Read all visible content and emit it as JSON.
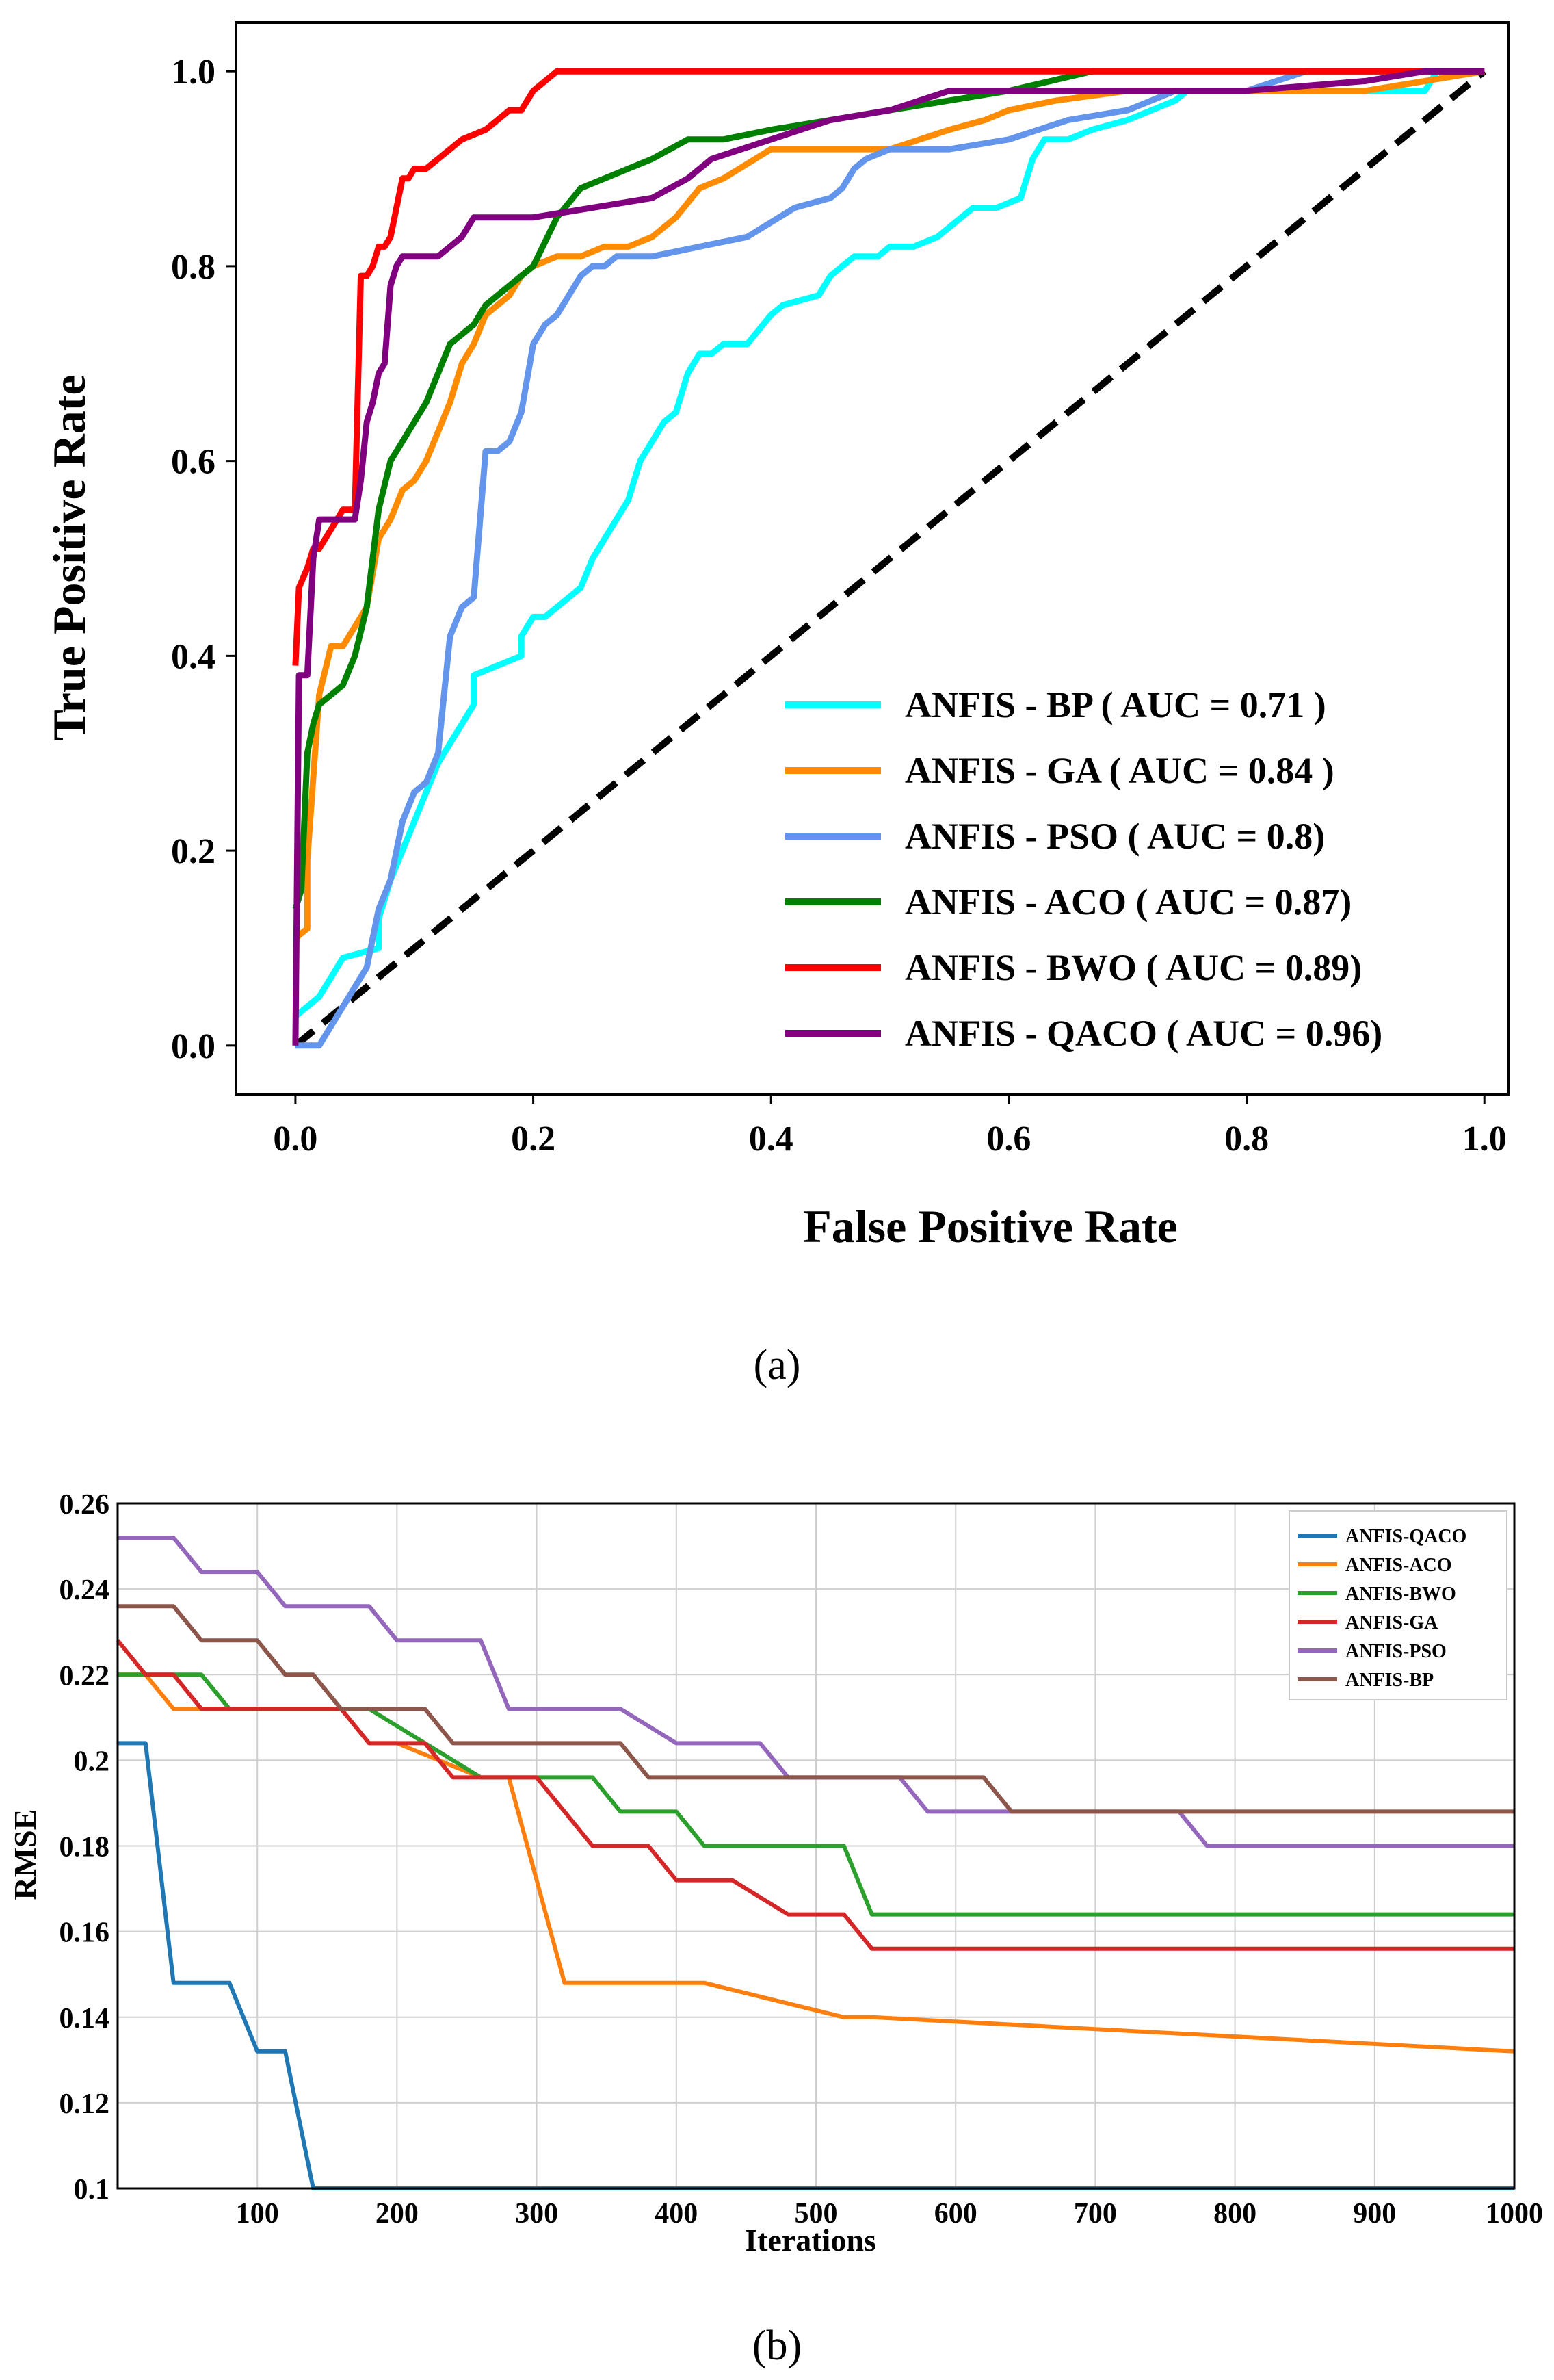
{
  "panels": {
    "a": {
      "caption": "(a)"
    },
    "b": {
      "caption": "(b)"
    }
  },
  "chart_data": [
    {
      "type": "line",
      "title": "",
      "xlabel": "False Positive Rate",
      "ylabel": "True Positive Rate",
      "xlim": [
        -0.05,
        1.02
      ],
      "ylim": [
        -0.05,
        1.05
      ],
      "xticks": [
        "0.0",
        "0.2",
        "0.4",
        "0.6",
        "0.8",
        "1.0"
      ],
      "yticks": [
        "0.0",
        "0.2",
        "0.4",
        "0.6",
        "0.8",
        "1.0"
      ],
      "xtick_values": [
        0,
        0.2,
        0.4,
        0.6,
        0.8,
        1.0
      ],
      "ytick_values": [
        0,
        0.2,
        0.4,
        0.6,
        0.8,
        1.0
      ],
      "grid": false,
      "legend_position": "bottom-right",
      "diagonal": {
        "x": [
          0,
          1
        ],
        "y": [
          0,
          1
        ],
        "color": "#000000",
        "style": "dashed"
      },
      "series": [
        {
          "name": "ANFIS - BP ( AUC = 0.71 )",
          "color": "#00FFFF",
          "x": [
            0,
            0.01,
            0.02,
            0.03,
            0.04,
            0.07,
            0.07,
            0.08,
            0.09,
            0.1,
            0.11,
            0.12,
            0.13,
            0.14,
            0.15,
            0.15,
            0.19,
            0.19,
            0.2,
            0.21,
            0.24,
            0.25,
            0.26,
            0.28,
            0.29,
            0.3,
            0.31,
            0.32,
            0.33,
            0.34,
            0.35,
            0.36,
            0.38,
            0.4,
            0.41,
            0.44,
            0.45,
            0.46,
            0.47,
            0.49,
            0.5,
            0.52,
            0.54,
            0.55,
            0.57,
            0.59,
            0.61,
            0.62,
            0.63,
            0.65,
            0.67,
            0.7,
            0.72,
            0.74,
            0.75,
            0.9,
            0.93,
            0.95,
            0.96,
            1.0
          ],
          "y": [
            0.03,
            0.04,
            0.05,
            0.07,
            0.09,
            0.1,
            0.13,
            0.17,
            0.2,
            0.23,
            0.26,
            0.29,
            0.31,
            0.33,
            0.35,
            0.38,
            0.4,
            0.42,
            0.44,
            0.44,
            0.47,
            0.5,
            0.52,
            0.56,
            0.6,
            0.62,
            0.64,
            0.65,
            0.69,
            0.71,
            0.71,
            0.72,
            0.72,
            0.75,
            0.76,
            0.77,
            0.79,
            0.8,
            0.81,
            0.81,
            0.82,
            0.82,
            0.83,
            0.84,
            0.86,
            0.86,
            0.87,
            0.91,
            0.93,
            0.93,
            0.94,
            0.95,
            0.96,
            0.97,
            0.98,
            0.98,
            0.98,
            0.98,
            1.0,
            1.0
          ]
        },
        {
          "name": "ANFIS - GA ( AUC = 0.84 )",
          "color": "#FF8C00",
          "x": [
            0,
            0.01,
            0.01,
            0.02,
            0.03,
            0.04,
            0.05,
            0.06,
            0.07,
            0.08,
            0.09,
            0.1,
            0.11,
            0.12,
            0.13,
            0.14,
            0.15,
            0.16,
            0.17,
            0.18,
            0.19,
            0.2,
            0.22,
            0.24,
            0.26,
            0.28,
            0.3,
            0.32,
            0.34,
            0.36,
            0.4,
            0.44,
            0.5,
            0.55,
            0.58,
            0.6,
            0.64,
            0.7,
            0.8,
            0.9,
            1.0
          ],
          "y": [
            0.11,
            0.12,
            0.19,
            0.36,
            0.41,
            0.41,
            0.43,
            0.45,
            0.52,
            0.54,
            0.57,
            0.58,
            0.6,
            0.63,
            0.66,
            0.7,
            0.72,
            0.75,
            0.76,
            0.77,
            0.79,
            0.8,
            0.81,
            0.81,
            0.82,
            0.82,
            0.83,
            0.85,
            0.88,
            0.89,
            0.92,
            0.92,
            0.92,
            0.94,
            0.95,
            0.96,
            0.97,
            0.98,
            0.98,
            0.98,
            1.0
          ]
        },
        {
          "name": "ANFIS - PSO ( AUC = 0.8)",
          "color": "#6495ED",
          "x": [
            0,
            0.02,
            0.04,
            0.05,
            0.06,
            0.07,
            0.08,
            0.09,
            0.1,
            0.11,
            0.12,
            0.13,
            0.14,
            0.15,
            0.16,
            0.17,
            0.18,
            0.19,
            0.2,
            0.21,
            0.22,
            0.23,
            0.24,
            0.25,
            0.26,
            0.27,
            0.28,
            0.3,
            0.34,
            0.38,
            0.42,
            0.45,
            0.46,
            0.47,
            0.48,
            0.5,
            0.55,
            0.6,
            0.65,
            0.7,
            0.74,
            0.8,
            0.85,
            0.9,
            1.0
          ],
          "y": [
            0,
            0,
            0.04,
            0.06,
            0.08,
            0.14,
            0.17,
            0.23,
            0.26,
            0.27,
            0.3,
            0.42,
            0.45,
            0.46,
            0.61,
            0.61,
            0.62,
            0.65,
            0.72,
            0.74,
            0.75,
            0.77,
            0.79,
            0.8,
            0.8,
            0.81,
            0.81,
            0.81,
            0.82,
            0.83,
            0.86,
            0.87,
            0.88,
            0.9,
            0.91,
            0.92,
            0.92,
            0.93,
            0.95,
            0.96,
            0.98,
            0.98,
            1.0,
            1.0,
            1.0
          ]
        },
        {
          "name": "ANFIS - ACO ( AUC = 0.87)",
          "color": "#008000",
          "x": [
            0,
            0.005,
            0.01,
            0.015,
            0.02,
            0.03,
            0.04,
            0.05,
            0.06,
            0.07,
            0.08,
            0.09,
            0.1,
            0.11,
            0.12,
            0.13,
            0.14,
            0.15,
            0.16,
            0.18,
            0.2,
            0.22,
            0.24,
            0.26,
            0.28,
            0.3,
            0.33,
            0.36,
            0.4,
            0.45,
            0.5,
            0.55,
            0.6,
            0.67,
            0.75,
            0.85,
            1.0
          ],
          "y": [
            0.14,
            0.16,
            0.3,
            0.33,
            0.35,
            0.36,
            0.37,
            0.4,
            0.45,
            0.55,
            0.6,
            0.62,
            0.64,
            0.66,
            0.69,
            0.72,
            0.73,
            0.74,
            0.76,
            0.78,
            0.8,
            0.85,
            0.88,
            0.89,
            0.9,
            0.91,
            0.93,
            0.93,
            0.94,
            0.95,
            0.96,
            0.97,
            0.98,
            1.0,
            1.0,
            1.0,
            1.0
          ]
        },
        {
          "name": "ANFIS - BWO ( AUC = 0.89)",
          "color": "#FF0000",
          "x": [
            0,
            0.003,
            0.01,
            0.015,
            0.02,
            0.03,
            0.04,
            0.05,
            0.055,
            0.06,
            0.065,
            0.07,
            0.075,
            0.08,
            0.085,
            0.09,
            0.095,
            0.1,
            0.11,
            0.12,
            0.13,
            0.14,
            0.16,
            0.18,
            0.19,
            0.2,
            0.21,
            0.22,
            0.26,
            0.4,
            0.6,
            0.8,
            1.0
          ],
          "y": [
            0.39,
            0.47,
            0.49,
            0.51,
            0.51,
            0.53,
            0.55,
            0.55,
            0.79,
            0.79,
            0.8,
            0.82,
            0.82,
            0.83,
            0.86,
            0.89,
            0.89,
            0.9,
            0.9,
            0.91,
            0.92,
            0.93,
            0.94,
            0.96,
            0.96,
            0.98,
            0.99,
            1.0,
            1.0,
            1.0,
            1.0,
            1.0,
            1.0
          ]
        },
        {
          "name": "ANFIS - QACO ( AUC = 0.96)",
          "color": "#800080",
          "x": [
            0,
            0.003,
            0.01,
            0.015,
            0.02,
            0.04,
            0.05,
            0.055,
            0.06,
            0.065,
            0.07,
            0.075,
            0.08,
            0.085,
            0.09,
            0.1,
            0.12,
            0.14,
            0.15,
            0.2,
            0.25,
            0.3,
            0.33,
            0.35,
            0.4,
            0.45,
            0.5,
            0.55,
            0.6,
            0.7,
            0.8,
            0.9,
            0.95,
            1.0
          ],
          "y": [
            0,
            0.38,
            0.38,
            0.5,
            0.54,
            0.54,
            0.54,
            0.58,
            0.64,
            0.66,
            0.69,
            0.7,
            0.78,
            0.8,
            0.81,
            0.81,
            0.81,
            0.83,
            0.85,
            0.85,
            0.86,
            0.87,
            0.89,
            0.91,
            0.93,
            0.95,
            0.96,
            0.98,
            0.98,
            0.98,
            0.98,
            0.99,
            1.0,
            1.0
          ]
        }
      ]
    },
    {
      "type": "line",
      "title": "",
      "xlabel": "Iterations",
      "ylabel": "RMSE",
      "xlim": [
        0,
        1000
      ],
      "ylim": [
        0.1,
        0.26
      ],
      "xticks": [
        "100",
        "200",
        "300",
        "400",
        "500",
        "600",
        "700",
        "800",
        "900",
        "1000"
      ],
      "yticks": [
        "0.1",
        "0.12",
        "0.14",
        "0.16",
        "0.18",
        "0.2",
        "0.22",
        "0.24",
        "0.26"
      ],
      "xtick_values": [
        100,
        200,
        300,
        400,
        500,
        600,
        700,
        800,
        900,
        1000
      ],
      "ytick_values": [
        0.1,
        0.12,
        0.14,
        0.16,
        0.18,
        0.2,
        0.22,
        0.24,
        0.26
      ],
      "grid": true,
      "legend_position": "top-right",
      "series": [
        {
          "name": "ANFIS-QACO",
          "color": "#1F77B4",
          "x": [
            0,
            20,
            40,
            80,
            100,
            120,
            140,
            1000
          ],
          "y": [
            0.204,
            0.204,
            0.148,
            0.148,
            0.132,
            0.132,
            0.1,
            0.1
          ]
        },
        {
          "name": "ANFIS-ACO",
          "color": "#FF7F0E",
          "x": [
            0,
            20,
            40,
            60,
            160,
            180,
            200,
            260,
            280,
            320,
            420,
            520,
            540,
            1000
          ],
          "y": [
            0.22,
            0.22,
            0.212,
            0.212,
            0.212,
            0.204,
            0.204,
            0.196,
            0.196,
            0.148,
            0.148,
            0.14,
            0.14,
            0.132
          ]
        },
        {
          "name": "ANFIS-BWO",
          "color": "#2CA02C",
          "x": [
            0,
            20,
            60,
            80,
            180,
            200,
            260,
            340,
            360,
            400,
            420,
            520,
            540,
            1000
          ],
          "y": [
            0.22,
            0.22,
            0.22,
            0.212,
            0.212,
            0.208,
            0.196,
            0.196,
            0.188,
            0.188,
            0.18,
            0.18,
            0.164,
            0.164
          ]
        },
        {
          "name": "ANFIS-GA",
          "color": "#D62728",
          "x": [
            0,
            20,
            40,
            60,
            160,
            180,
            220,
            240,
            300,
            320,
            340,
            380,
            400,
            440,
            480,
            520,
            540,
            1000
          ],
          "y": [
            0.228,
            0.22,
            0.22,
            0.212,
            0.212,
            0.204,
            0.204,
            0.196,
            0.196,
            0.188,
            0.18,
            0.18,
            0.172,
            0.172,
            0.164,
            0.164,
            0.156,
            0.156
          ]
        },
        {
          "name": "ANFIS-PSO",
          "color": "#9467BD",
          "x": [
            0,
            40,
            60,
            100,
            120,
            180,
            200,
            260,
            280,
            360,
            400,
            460,
            480,
            560,
            580,
            760,
            780,
            1000
          ],
          "y": [
            0.252,
            0.252,
            0.244,
            0.244,
            0.236,
            0.236,
            0.228,
            0.228,
            0.212,
            0.212,
            0.204,
            0.204,
            0.196,
            0.196,
            0.188,
            0.188,
            0.18,
            0.18
          ]
        },
        {
          "name": "ANFIS-BP",
          "color": "#8C564B",
          "x": [
            0,
            40,
            60,
            100,
            120,
            140,
            160,
            220,
            240,
            360,
            380,
            400,
            620,
            640,
            1000
          ],
          "y": [
            0.236,
            0.236,
            0.228,
            0.228,
            0.22,
            0.22,
            0.212,
            0.212,
            0.204,
            0.204,
            0.196,
            0.196,
            0.196,
            0.188,
            0.188
          ]
        }
      ]
    }
  ]
}
